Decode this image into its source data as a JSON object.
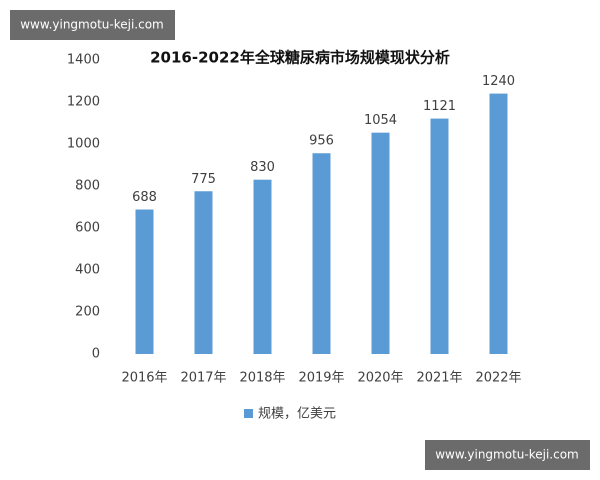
{
  "watermarks": [
    "www.yingmotu-keji.com",
    "www.yingmotu-keji.com"
  ],
  "chart_data": {
    "type": "bar",
    "title": "2016-2022年全球糖尿病市场规模现状分析",
    "categories": [
      "2016年",
      "2017年",
      "2018年",
      "2019年",
      "2020年",
      "2021年",
      "2022年"
    ],
    "series": [
      {
        "name": "规模，亿美元",
        "color": "#5b9bd5",
        "values": [
          688,
          775,
          830,
          956,
          1054,
          1121,
          1240
        ]
      }
    ],
    "ylim": [
      0,
      1400
    ],
    "yticks": [
      0,
      200,
      400,
      600,
      800,
      1000,
      1200,
      1400
    ],
    "grid": false,
    "legend": "bottom"
  }
}
